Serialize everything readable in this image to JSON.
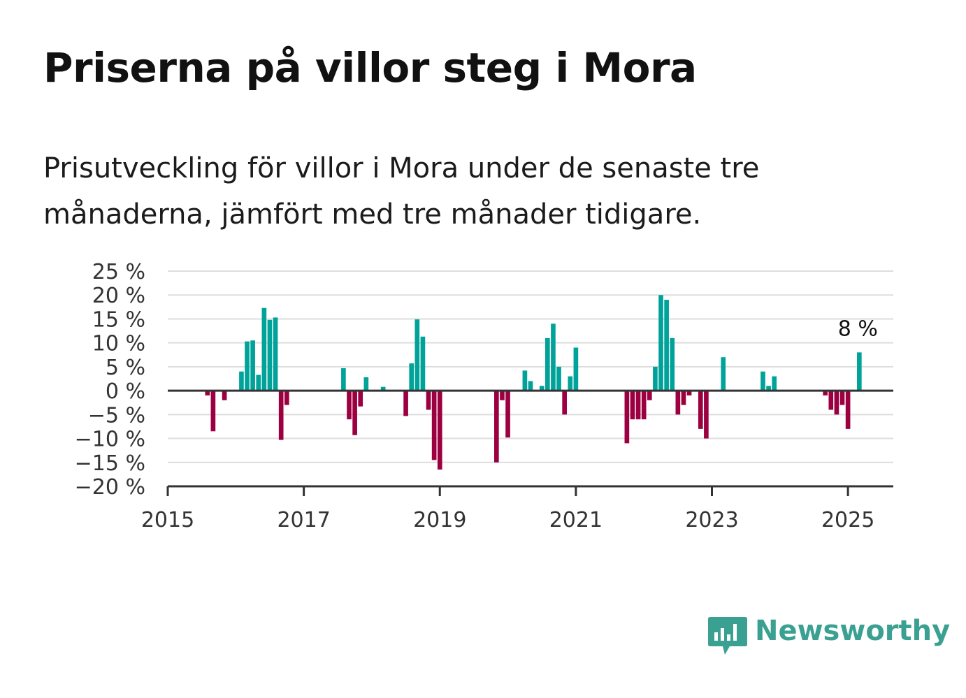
{
  "title": "Priserna på villor steg i Mora",
  "subtitle": "Prisutveckling för villor i Mora under de senaste tre månaderna, jämfört med tre månader tidigare.",
  "brand": {
    "name": "Newsworthy",
    "icon": "bar-chart-speech-bubble-icon",
    "color": "#3aa192"
  },
  "chart_data": {
    "type": "bar",
    "x_type": "date",
    "xlim": [
      "2015-01",
      "2025-09"
    ],
    "ylim": [
      -20,
      25
    ],
    "y_ticks": [
      25,
      20,
      15,
      10,
      5,
      0,
      -5,
      -10,
      -15,
      -20
    ],
    "y_tick_labels": [
      "25 %",
      "20 %",
      "15 %",
      "10 %",
      "5 %",
      "0 %",
      "−5 %",
      "−10 %",
      "−15 %",
      "−20 %"
    ],
    "x_ticks": [
      "2015-01",
      "2017-01",
      "2019-01",
      "2021-01",
      "2023-01",
      "2025-01"
    ],
    "x_tick_labels": [
      "2015",
      "2017",
      "2019",
      "2021",
      "2023",
      "2025"
    ],
    "grid": true,
    "colors": {
      "positive": "#00a39a",
      "negative": "#9c0040",
      "grid": "#dddddd",
      "axis": "#333333"
    },
    "annotation": {
      "x": "2025-03",
      "y": 8,
      "text": "8 %"
    },
    "points": [
      {
        "x": "2015-08",
        "y": -1
      },
      {
        "x": "2015-09",
        "y": -8.5
      },
      {
        "x": "2015-11",
        "y": -2
      },
      {
        "x": "2016-02",
        "y": 4
      },
      {
        "x": "2016-03",
        "y": 10.3
      },
      {
        "x": "2016-04",
        "y": 10.5
      },
      {
        "x": "2016-05",
        "y": 3.3
      },
      {
        "x": "2016-06",
        "y": 17.3
      },
      {
        "x": "2016-07",
        "y": 14.8
      },
      {
        "x": "2016-08",
        "y": 15.3
      },
      {
        "x": "2016-09",
        "y": -10.3
      },
      {
        "x": "2016-10",
        "y": -3
      },
      {
        "x": "2017-08",
        "y": 4.7
      },
      {
        "x": "2017-09",
        "y": -6
      },
      {
        "x": "2017-10",
        "y": -9.3
      },
      {
        "x": "2017-11",
        "y": -3.3
      },
      {
        "x": "2017-12",
        "y": 2.8
      },
      {
        "x": "2018-03",
        "y": 0.8
      },
      {
        "x": "2018-07",
        "y": -5.3
      },
      {
        "x": "2018-08",
        "y": 5.7
      },
      {
        "x": "2018-09",
        "y": 14.9
      },
      {
        "x": "2018-10",
        "y": 11.3
      },
      {
        "x": "2018-11",
        "y": -4
      },
      {
        "x": "2018-12",
        "y": -14.5
      },
      {
        "x": "2019-01",
        "y": -16.5
      },
      {
        "x": "2019-11",
        "y": -15
      },
      {
        "x": "2019-12",
        "y": -2
      },
      {
        "x": "2020-01",
        "y": -9.8
      },
      {
        "x": "2020-04",
        "y": 4.2
      },
      {
        "x": "2020-05",
        "y": 2
      },
      {
        "x": "2020-07",
        "y": 1
      },
      {
        "x": "2020-08",
        "y": 11
      },
      {
        "x": "2020-09",
        "y": 14
      },
      {
        "x": "2020-10",
        "y": 5
      },
      {
        "x": "2020-11",
        "y": -5
      },
      {
        "x": "2020-12",
        "y": 3
      },
      {
        "x": "2021-01",
        "y": 9
      },
      {
        "x": "2021-10",
        "y": -11
      },
      {
        "x": "2021-11",
        "y": -6
      },
      {
        "x": "2021-12",
        "y": -6
      },
      {
        "x": "2022-01",
        "y": -6
      },
      {
        "x": "2022-02",
        "y": -2
      },
      {
        "x": "2022-03",
        "y": 5
      },
      {
        "x": "2022-04",
        "y": 20
      },
      {
        "x": "2022-05",
        "y": 19
      },
      {
        "x": "2022-06",
        "y": 11
      },
      {
        "x": "2022-07",
        "y": -5
      },
      {
        "x": "2022-08",
        "y": -3
      },
      {
        "x": "2022-09",
        "y": -1
      },
      {
        "x": "2022-11",
        "y": -8
      },
      {
        "x": "2022-12",
        "y": -10
      },
      {
        "x": "2023-03",
        "y": 7
      },
      {
        "x": "2023-10",
        "y": 4
      },
      {
        "x": "2023-11",
        "y": 1
      },
      {
        "x": "2023-12",
        "y": 3
      },
      {
        "x": "2024-09",
        "y": -1
      },
      {
        "x": "2024-10",
        "y": -4
      },
      {
        "x": "2024-11",
        "y": -5
      },
      {
        "x": "2024-12",
        "y": -3
      },
      {
        "x": "2025-01",
        "y": -8
      },
      {
        "x": "2025-03",
        "y": 8
      }
    ]
  }
}
